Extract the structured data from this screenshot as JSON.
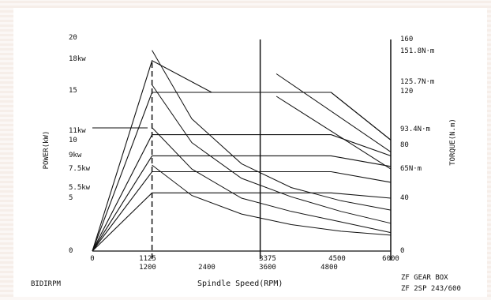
{
  "chart_data": {
    "type": "line",
    "title": "",
    "xlabel": "Spindle Speed(RPM)",
    "ylabel_left": "POWER(kW)",
    "ylabel_right": "TORQUE(N.m)",
    "x_ticks_upper": [
      "0",
      "1125",
      "3375",
      "4500",
      "6000"
    ],
    "x_ticks_lower": [
      "1200",
      "2400",
      "3600",
      "4800"
    ],
    "left_ticks": [
      "20",
      "18kw",
      "15",
      "11kw",
      "10",
      "9kw",
      "7.5kw",
      "5.5kw",
      "5",
      "0"
    ],
    "right_ticks": [
      "160",
      "151.8N·m",
      "125.7N·m",
      "120",
      "93.4N·m",
      "80",
      "65N·m",
      "40",
      "0"
    ],
    "xlim": [
      0,
      6000
    ],
    "ylim_power": [
      0,
      20
    ],
    "ylim_torque": [
      0,
      160
    ],
    "series_power": [
      {
        "values": [
          [
            0,
            0
          ],
          [
            1200,
            18
          ],
          [
            2400,
            15
          ],
          [
            3600,
            15
          ],
          [
            4800,
            15
          ],
          [
            6000,
            10.5
          ]
        ]
      },
      {
        "values": [
          [
            0,
            0
          ],
          [
            1200,
            15
          ],
          [
            2400,
            15
          ],
          [
            3600,
            15
          ],
          [
            4800,
            15
          ],
          [
            6000,
            10.5
          ]
        ]
      },
      {
        "values": [
          [
            0,
            0
          ],
          [
            1200,
            11
          ],
          [
            2400,
            11
          ],
          [
            3600,
            11
          ],
          [
            4800,
            11
          ],
          [
            6000,
            9
          ]
        ]
      },
      {
        "values": [
          [
            0,
            0
          ],
          [
            1200,
            9
          ],
          [
            2400,
            9
          ],
          [
            3600,
            9
          ],
          [
            4800,
            9
          ],
          [
            6000,
            8
          ]
        ]
      },
      {
        "values": [
          [
            0,
            0
          ],
          [
            1200,
            7.5
          ],
          [
            2400,
            7.5
          ],
          [
            3600,
            7.5
          ],
          [
            4800,
            7.5
          ],
          [
            6000,
            6.5
          ]
        ]
      },
      {
        "values": [
          [
            0,
            0
          ],
          [
            1200,
            5.5
          ],
          [
            2400,
            5.5
          ],
          [
            3600,
            5.5
          ],
          [
            4800,
            5.5
          ],
          [
            6000,
            5
          ]
        ]
      }
    ],
    "series_torque": [
      {
        "values": [
          [
            1200,
            151.8
          ],
          [
            2000,
            100
          ],
          [
            3000,
            66
          ],
          [
            4000,
            48
          ],
          [
            5000,
            38
          ],
          [
            6000,
            31
          ]
        ]
      },
      {
        "values": [
          [
            1200,
            125.7
          ],
          [
            2000,
            82
          ],
          [
            3000,
            55
          ],
          [
            4000,
            41
          ],
          [
            5000,
            30
          ],
          [
            6000,
            21
          ]
        ]
      },
      {
        "values": [
          [
            1200,
            93.4
          ],
          [
            2000,
            62
          ],
          [
            3000,
            40
          ],
          [
            4000,
            30
          ],
          [
            5000,
            22
          ],
          [
            6000,
            14
          ]
        ]
      },
      {
        "values": [
          [
            1200,
            65
          ],
          [
            2000,
            42
          ],
          [
            3000,
            28
          ],
          [
            4000,
            20
          ],
          [
            5000,
            15
          ],
          [
            6000,
            12
          ]
        ]
      }
    ],
    "torque_falloff": [
      {
        "values": [
          [
            3700,
            134
          ],
          [
            6000,
            75
          ]
        ]
      },
      {
        "values": [
          [
            3700,
            117
          ],
          [
            6000,
            62
          ]
        ]
      }
    ],
    "vlines": [
      {
        "x": 1200,
        "style": "dashed",
        "from": 0,
        "to": 18
      },
      {
        "x": 3375,
        "style": "solid",
        "from": 0,
        "to": 20
      }
    ],
    "grid": false,
    "legend": "none"
  },
  "footer": {
    "left": "BIDIRPM",
    "right_line1": "ZF GEAR BOX",
    "right_line2": "ZF 2SP 243/600"
  }
}
